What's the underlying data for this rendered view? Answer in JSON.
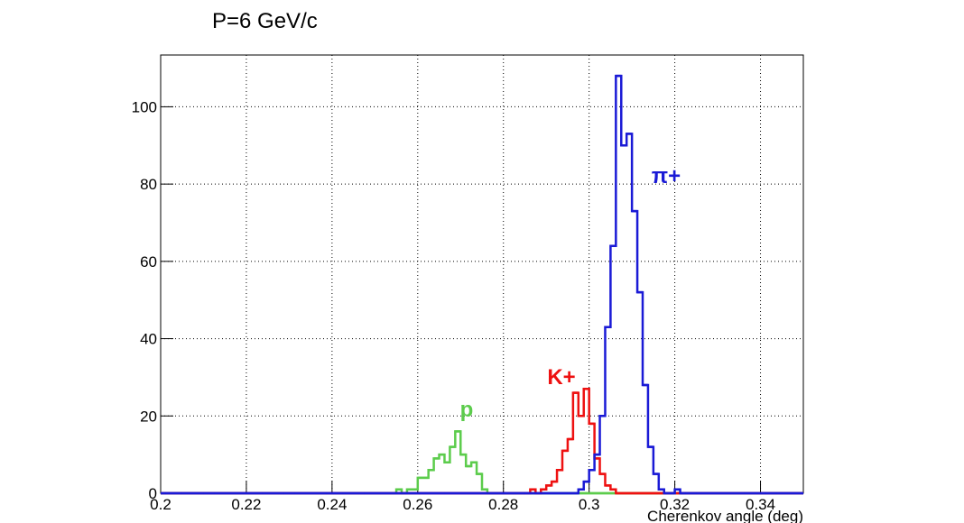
{
  "chart_data": {
    "type": "histogram",
    "title": "P=6 GeV/c",
    "x_label": "Cherenkov angle (deg)",
    "bins": [
      0.2,
      0.20125,
      0.2025,
      0.20375,
      0.205,
      0.20625,
      0.2075,
      0.20875,
      0.21,
      0.21125,
      0.2125,
      0.21375,
      0.215,
      0.21625,
      0.2175,
      0.21875,
      0.22,
      0.22125,
      0.2225,
      0.22375,
      0.225,
      0.22625,
      0.2275,
      0.22875,
      0.23,
      0.23125,
      0.2325,
      0.23375,
      0.235,
      0.23625,
      0.2375,
      0.23875,
      0.24,
      0.24125,
      0.2425,
      0.24375,
      0.245,
      0.24625,
      0.2475,
      0.24875,
      0.25,
      0.25125,
      0.2525,
      0.25375,
      0.255,
      0.25625,
      0.2575,
      0.25875,
      0.26,
      0.26125,
      0.2625,
      0.26375,
      0.265,
      0.26625,
      0.2675,
      0.26875,
      0.27,
      0.27125,
      0.2725,
      0.27375,
      0.275,
      0.27625,
      0.2775,
      0.27875,
      0.28,
      0.28125,
      0.2825,
      0.28375,
      0.285,
      0.28625,
      0.2875,
      0.28875,
      0.29,
      0.29125,
      0.2925,
      0.29375,
      0.295,
      0.29625,
      0.2975,
      0.29875,
      0.3,
      0.30125,
      0.3025,
      0.30375,
      0.305,
      0.30625,
      0.3075,
      0.30875,
      0.31,
      0.31125,
      0.3125,
      0.31375,
      0.315,
      0.31625,
      0.3175,
      0.31875,
      0.32,
      0.32125,
      0.3225,
      0.32375,
      0.325,
      0.32625,
      0.3275,
      0.32875,
      0.33,
      0.33125,
      0.3325,
      0.33375,
      0.335,
      0.33625,
      0.3375,
      0.33875,
      0.34,
      0.34125,
      0.3425,
      0.34375,
      0.345,
      0.34625,
      0.3475,
      0.34875,
      0.35
    ],
    "series": [
      {
        "name": "p",
        "color": "#5ccc4c",
        "values": [
          0,
          0,
          0,
          0,
          0,
          0,
          0,
          0,
          0,
          0,
          0,
          0,
          0,
          0,
          0,
          0,
          0,
          0,
          0,
          0,
          0,
          0,
          0,
          0,
          0,
          0,
          0,
          0,
          0,
          0,
          0,
          0,
          0,
          0,
          0,
          0,
          0,
          0,
          0,
          0,
          0,
          0,
          0,
          0,
          1,
          0,
          1,
          1,
          4,
          4,
          6,
          9,
          10,
          8,
          12,
          16,
          10,
          7,
          8,
          5,
          1,
          0,
          0,
          0,
          0,
          0,
          0,
          0,
          0,
          0,
          0,
          0,
          0,
          0,
          0,
          0,
          0,
          0,
          0,
          0,
          0,
          0,
          0,
          0,
          0,
          0,
          0,
          0,
          0,
          0,
          0,
          0,
          0,
          0,
          0,
          0,
          0,
          0,
          0,
          0,
          0,
          0,
          0,
          0,
          0,
          0,
          0,
          0,
          0,
          0,
          0,
          0,
          0,
          0,
          0,
          0,
          0,
          0,
          0,
          0
        ]
      },
      {
        "name": "K+",
        "color": "#ee1111",
        "values": [
          0,
          0,
          0,
          0,
          0,
          0,
          0,
          0,
          0,
          0,
          0,
          0,
          0,
          0,
          0,
          0,
          0,
          0,
          0,
          0,
          0,
          0,
          0,
          0,
          0,
          0,
          0,
          0,
          0,
          0,
          0,
          0,
          0,
          0,
          0,
          0,
          0,
          0,
          0,
          0,
          0,
          0,
          0,
          0,
          0,
          0,
          0,
          0,
          0,
          0,
          0,
          0,
          0,
          0,
          0,
          0,
          0,
          0,
          0,
          0,
          0,
          0,
          0,
          0,
          0,
          0,
          0,
          0,
          0,
          1,
          0,
          1,
          2,
          3,
          6,
          11,
          14,
          26,
          20,
          27,
          18,
          9,
          5,
          2,
          1,
          0,
          0,
          0,
          0,
          0,
          0,
          0,
          0,
          0,
          0,
          0,
          0,
          0,
          0,
          0,
          0,
          0,
          0,
          0,
          0,
          0,
          0,
          0,
          0,
          0,
          0,
          0,
          0,
          0,
          0,
          0,
          0,
          0,
          0,
          0
        ]
      },
      {
        "name": "π+",
        "color": "#1a1ad6",
        "values": [
          0,
          0,
          0,
          0,
          0,
          0,
          0,
          0,
          0,
          0,
          0,
          0,
          0,
          0,
          0,
          0,
          0,
          0,
          0,
          0,
          0,
          0,
          0,
          0,
          0,
          0,
          0,
          0,
          0,
          0,
          0,
          0,
          0,
          0,
          0,
          0,
          0,
          0,
          0,
          0,
          0,
          0,
          0,
          0,
          0,
          0,
          0,
          0,
          0,
          0,
          0,
          0,
          0,
          0,
          0,
          0,
          0,
          0,
          0,
          0,
          0,
          0,
          0,
          0,
          0,
          0,
          0,
          0,
          0,
          0,
          0,
          0,
          0,
          0,
          0,
          0,
          0,
          0,
          1,
          3,
          6,
          10,
          20,
          43,
          64,
          108,
          90,
          93,
          73,
          52,
          28,
          12,
          5,
          1,
          0,
          0,
          1,
          0,
          0,
          0,
          0,
          0,
          0,
          0,
          0,
          0,
          0,
          0,
          0,
          0,
          0,
          0,
          0,
          0,
          0,
          0,
          0,
          0,
          0,
          0
        ]
      }
    ],
    "xlim": [
      0.2,
      0.35
    ],
    "ylim": [
      0,
      113.4
    ],
    "xticks": [
      0.2,
      0.22,
      0.24,
      0.26,
      0.28,
      0.3,
      0.32,
      0.34
    ],
    "yticks": [
      0,
      20,
      40,
      60,
      80,
      100
    ],
    "grid": true
  }
}
